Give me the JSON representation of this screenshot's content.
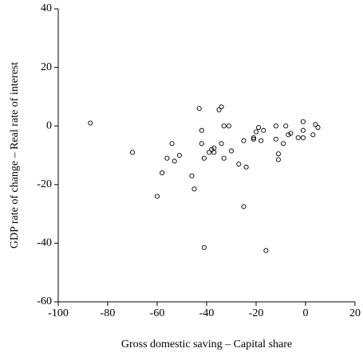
{
  "chart_data": {
    "type": "scatter",
    "x_label": "Gross domestic saving – Capital share",
    "y_label": "GDP rate of change – Real rate of interest",
    "xlim": [
      -100,
      20
    ],
    "ylim": [
      -60,
      40
    ],
    "xticks": [
      -100,
      -80,
      -60,
      -40,
      -20,
      0,
      20
    ],
    "yticks": [
      -60,
      -40,
      -20,
      0,
      20,
      40
    ],
    "color": "#000000",
    "x": [
      -87,
      -70,
      -60,
      -58,
      -56,
      -54,
      -53,
      -51,
      -46,
      -45,
      -43,
      -42,
      -42,
      -41,
      -41,
      -39,
      -38,
      -37,
      -37,
      -35,
      -34,
      -34,
      -33,
      -33,
      -31,
      -30,
      -27,
      -25,
      -25,
      -24,
      -21,
      -21,
      -20,
      -19,
      -18,
      -17,
      -16,
      -12,
      -12,
      -11,
      -11,
      -9,
      -8,
      -7,
      -6,
      -3,
      -1,
      -1,
      -1,
      3,
      4,
      5
    ],
    "y": [
      1,
      -9,
      -24,
      -16,
      -11,
      -6,
      -12,
      -10,
      -17,
      -21.5,
      6,
      -1.5,
      -6,
      -11,
      -41.5,
      -9,
      -8,
      -7.5,
      -9,
      5.5,
      6.5,
      -6,
      0,
      -11,
      0,
      -8.5,
      -13,
      -5,
      -27.5,
      -14,
      -4,
      -4.5,
      -2,
      -0.5,
      -5,
      -1.5,
      -42.5,
      0,
      -4.5,
      -9.5,
      -11.5,
      -6,
      0,
      -3,
      -2.5,
      -4,
      -4,
      1.5,
      -1.5,
      -3,
      0.5,
      -0.5
    ]
  }
}
